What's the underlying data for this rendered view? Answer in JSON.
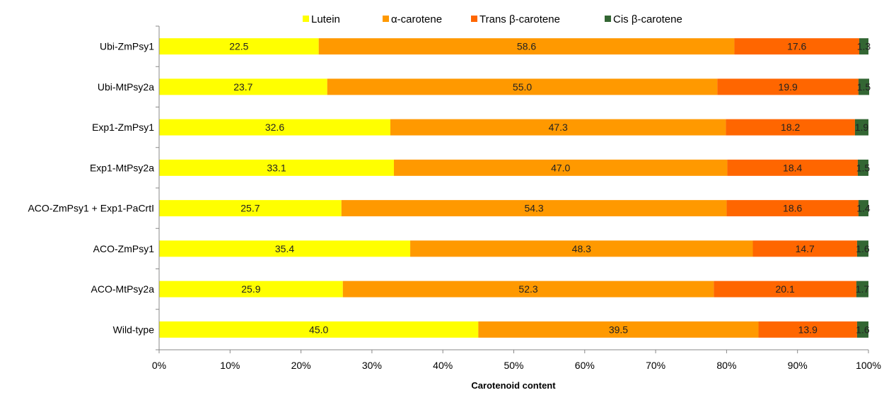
{
  "chart_data": {
    "type": "bar",
    "orientation": "horizontal",
    "stacked": true,
    "percent_stacked": true,
    "categories": [
      "Ubi-ZmPsy1",
      "Ubi-MtPsy2a",
      "Exp1-ZmPsy1",
      "Exp1-MtPsy2a",
      "ACO-ZmPsy1 + Exp1-PaCrtI",
      "ACO-ZmPsy1",
      "ACO-MtPsy2a",
      "Wild-type"
    ],
    "series": [
      {
        "name": "Lutein",
        "color": "#ffff00",
        "values": [
          22.5,
          23.7,
          32.6,
          33.1,
          25.7,
          35.4,
          25.9,
          45.0
        ],
        "labels": [
          "22.5",
          "23.7",
          "32.6",
          "33.1",
          "25.7",
          "35.4",
          "25.9",
          "45.0"
        ]
      },
      {
        "name": "α-carotene",
        "color": "#ff9900",
        "values": [
          58.6,
          55.0,
          47.3,
          47.0,
          54.3,
          48.3,
          52.3,
          39.5
        ],
        "labels": [
          "58.6",
          "55.0",
          "47.3",
          "47.0",
          "54.3",
          "48.3",
          "52.3",
          "39.5"
        ]
      },
      {
        "name": "Trans β-carotene",
        "color": "#ff6600",
        "values": [
          17.6,
          19.9,
          18.2,
          18.4,
          18.6,
          14.7,
          20.1,
          13.9
        ],
        "labels": [
          "17.6",
          "19.9",
          "18.2",
          "18.4",
          "18.6",
          "14.7",
          "20.1",
          "13.9"
        ]
      },
      {
        "name": "Cis β-carotene",
        "color": "#336633",
        "values": [
          1.3,
          1.5,
          1.9,
          1.5,
          1.4,
          1.6,
          1.7,
          1.6
        ],
        "labels": [
          "1.3",
          "1.5",
          "1.9",
          "1.5",
          "1.4",
          "1.6",
          "1.7",
          "1.6"
        ]
      }
    ],
    "xlabel": "Carotenoid content",
    "ylabel": "",
    "xlim": [
      0,
      100
    ],
    "xticks": [
      "0%",
      "10%",
      "20%",
      "30%",
      "40%",
      "50%",
      "60%",
      "70%",
      "80%",
      "90%",
      "100%"
    ],
    "legend_position": "top",
    "grid": false
  }
}
